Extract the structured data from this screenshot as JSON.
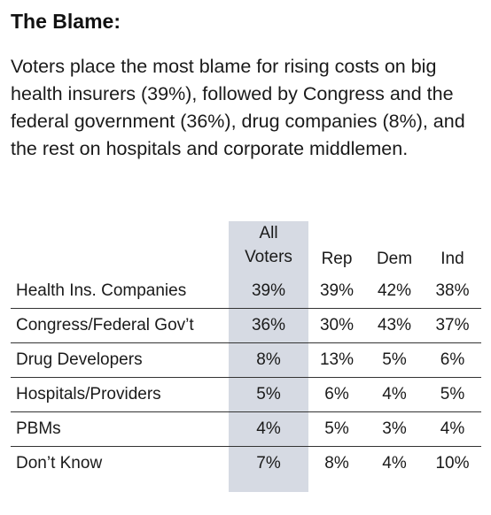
{
  "title": "The Blame:",
  "body": "Voters place the most blame for rising costs on big health insurers (39%), followed by Congress and the federal government (36%), drug companies (8%), and the rest on hospitals and corporate middlemen.",
  "table": {
    "headers": [
      "",
      "All Voters",
      "Rep",
      "Dem",
      "Ind"
    ],
    "header_all_line1": "All",
    "header_all_line2": "Voters",
    "rows": [
      {
        "label": "Health Ins. Companies",
        "all": "39%",
        "rep": "39%",
        "dem": "42%",
        "ind": "38%"
      },
      {
        "label": "Congress/Federal Gov’t",
        "all": "36%",
        "rep": "30%",
        "dem": "43%",
        "ind": "37%"
      },
      {
        "label": "Drug Developers",
        "all": "8%",
        "rep": "13%",
        "dem": "5%",
        "ind": "6%"
      },
      {
        "label": "Hospitals/Providers",
        "all": "5%",
        "rep": "6%",
        "dem": "4%",
        "ind": "5%"
      },
      {
        "label": "PBMs",
        "all": "4%",
        "rep": "5%",
        "dem": "3%",
        "ind": "4%"
      },
      {
        "label": "Don’t Know",
        "all": "7%",
        "rep": "8%",
        "dem": "4%",
        "ind": "10%"
      }
    ]
  },
  "colors": {
    "highlight": "#d6dae3",
    "rule": "#333333"
  }
}
